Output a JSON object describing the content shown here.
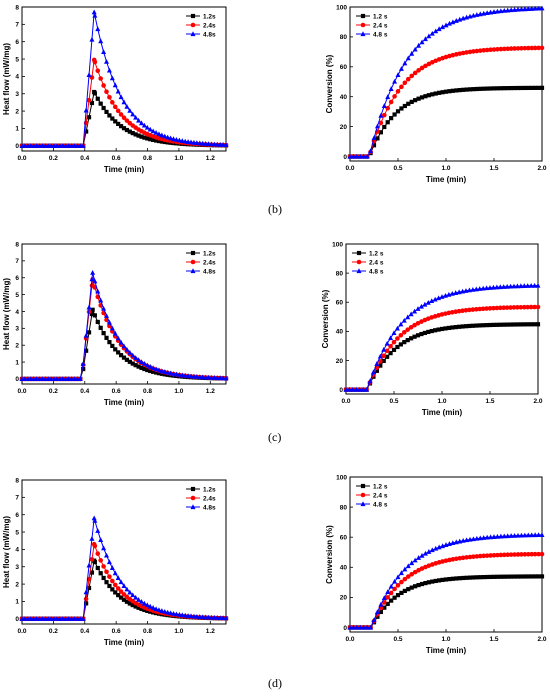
{
  "panel_labels": [
    "(b)",
    "(c)",
    "(d)"
  ],
  "colors": {
    "s1": "#000000",
    "s2": "#ff0000",
    "s3": "#0000ff"
  },
  "chart_data": [
    {
      "type": "line",
      "panel": "b",
      "side": "heat",
      "xlabel": "Time (min)",
      "ylabel": "Heat flow (mW/mg)",
      "xlim": [
        0,
        1.3
      ],
      "ylim": [
        -0.3,
        8
      ],
      "xticks": [
        "0.0",
        "0.2",
        "0.4",
        "0.6",
        "0.8",
        "1.0",
        "1.2"
      ],
      "xtick_values": [
        0,
        0.2,
        0.4,
        0.6,
        0.8,
        1.0,
        1.2
      ],
      "yticks": [
        "0",
        "1",
        "2",
        "3",
        "4",
        "5",
        "6",
        "7",
        "8"
      ],
      "ytick_values": [
        0,
        1,
        2,
        3,
        4,
        5,
        6,
        7,
        8
      ],
      "legend": "top-right",
      "series": [
        {
          "name": "1.2s",
          "marker": "square",
          "peak": 3.1
        },
        {
          "name": "2.4s",
          "marker": "circle",
          "peak": 4.95
        },
        {
          "name": "4.8s",
          "marker": "triangle",
          "peak": 7.7
        }
      ],
      "onset": 0.39,
      "peak_time": 0.46,
      "decay": 0.17
    },
    {
      "type": "line",
      "panel": "b",
      "side": "conv",
      "xlabel": "Time (min)",
      "ylabel": "Conversion (%)",
      "xlim": [
        0,
        2.0
      ],
      "ylim": [
        -3,
        100
      ],
      "xticks": [
        "0.0",
        "0.5",
        "1.0",
        "1.5",
        "2.0"
      ],
      "xtick_values": [
        0,
        0.5,
        1.0,
        1.5,
        2.0
      ],
      "yticks": [
        "0",
        "20",
        "40",
        "60",
        "80",
        "100"
      ],
      "ytick_values": [
        0,
        20,
        40,
        60,
        80,
        100
      ],
      "legend": "top-left",
      "series": [
        {
          "name": "1.2 s",
          "marker": "square",
          "plateau": 46,
          "tau": 0.28
        },
        {
          "name": "2.4 s",
          "marker": "circle",
          "plateau": 73,
          "tau": 0.33
        },
        {
          "name": "4.8 s",
          "marker": "triangle",
          "plateau": 100,
          "tau": 0.38
        }
      ],
      "onset": 0.2
    },
    {
      "type": "line",
      "panel": "c",
      "side": "heat",
      "xlabel": "Time (min)",
      "ylabel": "Heat flow (mW/mg)",
      "xlim": [
        0,
        1.3
      ],
      "ylim": [
        -0.3,
        8
      ],
      "xticks": [
        "0.0",
        "0.2",
        "0.4",
        "0.6",
        "0.8",
        "1.0",
        "1.2"
      ],
      "xtick_values": [
        0,
        0.2,
        0.4,
        0.6,
        0.8,
        1.0,
        1.2
      ],
      "yticks": [
        "0",
        "1",
        "2",
        "3",
        "4",
        "5",
        "6",
        "7",
        "8"
      ],
      "ytick_values": [
        0,
        1,
        2,
        3,
        4,
        5,
        6,
        7,
        8
      ],
      "legend": "top-right",
      "series": [
        {
          "name": "1.2s",
          "marker": "square",
          "peak": 4.1
        },
        {
          "name": "2.4s",
          "marker": "circle",
          "peak": 5.9
        },
        {
          "name": "4.8s",
          "marker": "triangle",
          "peak": 6.3
        }
      ],
      "onset": 0.38,
      "peak_time": 0.45,
      "decay": 0.17
    },
    {
      "type": "line",
      "panel": "c",
      "side": "conv",
      "xlabel": "Time (min)",
      "ylabel": "Conversion (%)",
      "xlim": [
        0,
        2.0
      ],
      "ylim": [
        -3,
        100
      ],
      "xticks": [
        "0.0",
        "0.5",
        "1.0",
        "1.5",
        "2.0"
      ],
      "xtick_values": [
        0,
        0.5,
        1.0,
        1.5,
        2.0
      ],
      "yticks": [
        "0",
        "20",
        "40",
        "60",
        "80",
        "100"
      ],
      "ytick_values": [
        0,
        20,
        40,
        60,
        80,
        100
      ],
      "legend": "top-left",
      "series": [
        {
          "name": "1.2 s",
          "marker": "square",
          "plateau": 45,
          "tau": 0.3
        },
        {
          "name": "2.4 s",
          "marker": "circle",
          "plateau": 57,
          "tau": 0.33
        },
        {
          "name": "4.8 s",
          "marker": "triangle",
          "plateau": 72,
          "tau": 0.36
        }
      ],
      "onset": 0.22
    },
    {
      "type": "line",
      "panel": "d",
      "side": "heat",
      "xlabel": "Time (min)",
      "ylabel": "Heat flow (mW/mg)",
      "xlim": [
        0,
        1.3
      ],
      "ylim": [
        -0.3,
        8
      ],
      "xticks": [
        "0.0",
        "0.2",
        "0.4",
        "0.6",
        "0.8",
        "1.0",
        "1.2"
      ],
      "xtick_values": [
        0,
        0.2,
        0.4,
        0.6,
        0.8,
        1.0,
        1.2
      ],
      "yticks": [
        "0",
        "1",
        "2",
        "3",
        "4",
        "5",
        "6",
        "7",
        "8"
      ],
      "ytick_values": [
        0,
        1,
        2,
        3,
        4,
        5,
        6,
        7,
        8
      ],
      "legend": "top-right",
      "series": [
        {
          "name": "1.2s",
          "marker": "square",
          "peak": 3.35
        },
        {
          "name": "2.4s",
          "marker": "circle",
          "peak": 4.3
        },
        {
          "name": "4.8s",
          "marker": "triangle",
          "peak": 5.8
        }
      ],
      "onset": 0.39,
      "peak_time": 0.46,
      "decay": 0.17
    },
    {
      "type": "line",
      "panel": "d",
      "side": "conv",
      "xlabel": "Time (min)",
      "ylabel": "Conversion (%)",
      "xlim": [
        0,
        2.0
      ],
      "ylim": [
        -3,
        100
      ],
      "xticks": [
        "0.0",
        "0.5",
        "1.0",
        "1.5",
        "2.0"
      ],
      "xtick_values": [
        0,
        0.5,
        1.0,
        1.5,
        2.0
      ],
      "yticks": [
        "0",
        "20",
        "40",
        "60",
        "80",
        "100"
      ],
      "ytick_values": [
        0,
        20,
        40,
        60,
        80,
        100
      ],
      "legend": "top-left",
      "series": [
        {
          "name": "1.2 s",
          "marker": "square",
          "plateau": 34,
          "tau": 0.28
        },
        {
          "name": "2.4 s",
          "marker": "circle",
          "plateau": 49,
          "tau": 0.33
        },
        {
          "name": "4.8 s",
          "marker": "triangle",
          "plateau": 62,
          "tau": 0.36
        }
      ],
      "onset": 0.22
    }
  ]
}
